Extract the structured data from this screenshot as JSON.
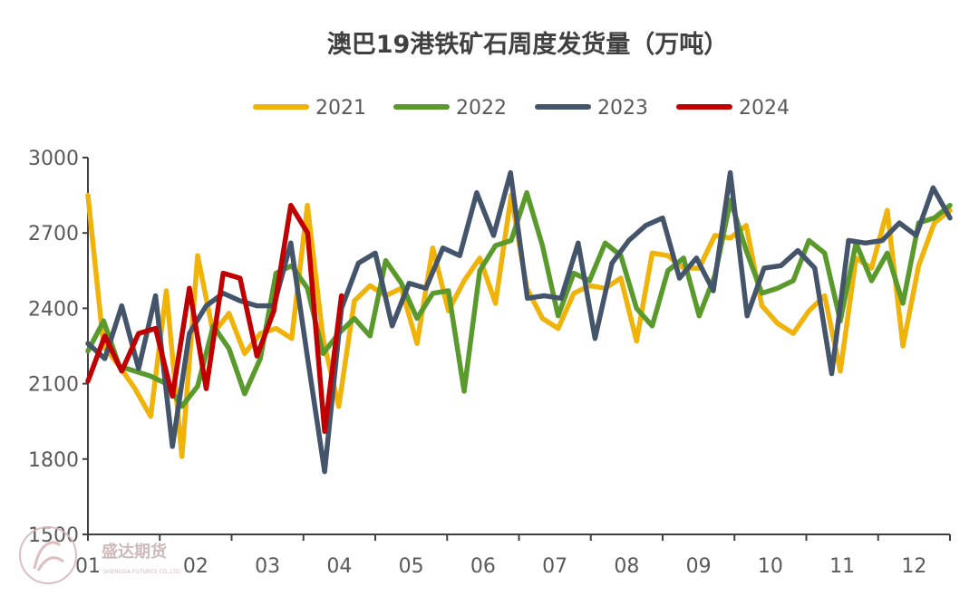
{
  "chart_data": {
    "type": "line",
    "title": "澳巴19港铁矿石周度发货量（万吨）",
    "xlabel": "",
    "ylabel": "",
    "ylim": [
      1500,
      3000
    ],
    "yticks": [
      1500,
      1800,
      2100,
      2400,
      2700,
      3000
    ],
    "x_tick_labels": [
      "01",
      "02",
      "03",
      "04",
      "05",
      "06",
      "07",
      "08",
      "09",
      "10",
      "11",
      "12"
    ],
    "legend_position": "top",
    "grid": false,
    "series": [
      {
        "name": "2021",
        "color": "#F0B30A",
        "values": [
          2850,
          2250,
          2170,
          2080,
          1970,
          2470,
          1810,
          2610,
          2300,
          2380,
          2220,
          2300,
          2320,
          2280,
          2810,
          2280,
          2010,
          2430,
          2490,
          2450,
          2480,
          2260,
          2640,
          2390,
          2510,
          2600,
          2420,
          2850,
          2480,
          2360,
          2320,
          2460,
          2490,
          2480,
          2520,
          2270,
          2620,
          2610,
          2560,
          2560,
          2690,
          2680,
          2730,
          2410,
          2340,
          2300,
          2390,
          2450,
          2150,
          2600,
          2560,
          2790,
          2250,
          2570,
          2740,
          2790
        ]
      },
      {
        "name": "2022",
        "color": "#5A9A2C",
        "values": [
          2230,
          2350,
          2170,
          2150,
          2130,
          2100,
          2010,
          2090,
          2330,
          2240,
          2060,
          2200,
          2540,
          2570,
          2480,
          2220,
          2300,
          2360,
          2290,
          2590,
          2500,
          2360,
          2460,
          2470,
          2070,
          2550,
          2650,
          2670,
          2860,
          2650,
          2370,
          2540,
          2510,
          2660,
          2610,
          2400,
          2330,
          2550,
          2600,
          2370,
          2530,
          2830,
          2630,
          2460,
          2480,
          2510,
          2670,
          2620,
          2350,
          2660,
          2510,
          2620,
          2420,
          2740,
          2760,
          2810
        ]
      },
      {
        "name": "2023",
        "color": "#44546A",
        "values": [
          2260,
          2200,
          2410,
          2160,
          2450,
          1850,
          2300,
          2410,
          2460,
          2430,
          2410,
          2410,
          2660,
          2200,
          1750,
          2400,
          2580,
          2620,
          2330,
          2500,
          2480,
          2640,
          2610,
          2860,
          2690,
          2940,
          2440,
          2450,
          2440,
          2660,
          2280,
          2580,
          2670,
          2730,
          2760,
          2520,
          2600,
          2470,
          2940,
          2370,
          2560,
          2570,
          2630,
          2560,
          2140,
          2670,
          2660,
          2670,
          2740,
          2690,
          2880,
          2760
        ]
      },
      {
        "name": "2024",
        "color": "#C00000",
        "values": [
          2110,
          2290,
          2150,
          2300,
          2320,
          2050,
          2480,
          2080,
          2540,
          2520,
          2210,
          2390,
          2810,
          2700,
          1910,
          2450
        ]
      }
    ]
  },
  "watermark": {
    "name": "盛达期货",
    "sub": "SHENGDA FUTURES CO.,LTD."
  }
}
